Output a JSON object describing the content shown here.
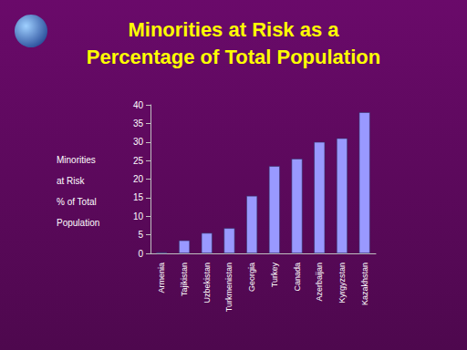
{
  "chart_data": {
    "type": "bar",
    "title": "Minorities at Risk as a\nPercentage of Total Population",
    "y_label": "Minorities\nat Risk\n% of Total\nPopulation",
    "categories": [
      "Armenia",
      "Tajikistan",
      "Uzbekistan",
      "Turkmenistan",
      "Georgia",
      "Turkey",
      "Canada",
      "Azerbaijan",
      "Kyrgyzstan",
      "Kazakhstan"
    ],
    "values": [
      0.3,
      3.5,
      5.5,
      6.8,
      15.5,
      23.5,
      25.5,
      30,
      31,
      38
    ],
    "color": "#9999ff",
    "ylim": [
      0,
      40
    ],
    "yticks": [
      0,
      5,
      10,
      15,
      20,
      25,
      30,
      35,
      40
    ],
    "grid": false
  }
}
